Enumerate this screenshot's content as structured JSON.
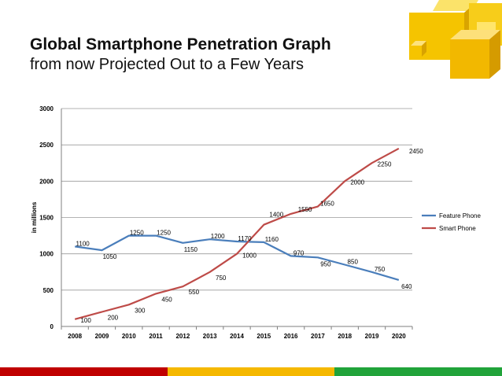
{
  "header": {
    "title": "Global Smartphone Penetration Graph",
    "subtitle": "from now Projected Out to a Few Years"
  },
  "chart_data": {
    "type": "line",
    "title": "",
    "xlabel": "",
    "ylabel": "in millions",
    "x": [
      2008,
      2009,
      2010,
      2011,
      2012,
      2013,
      2014,
      2015,
      2016,
      2017,
      2018,
      2019,
      2020
    ],
    "ylim": [
      0,
      3000
    ],
    "yticks": [
      0,
      500,
      1000,
      1500,
      2000,
      2500,
      3000
    ],
    "grid": true,
    "legend_position": "right",
    "series": [
      {
        "name": "Feature Phone",
        "color": "#4a7ebb",
        "values": [
          1100,
          1050,
          1250,
          1250,
          1150,
          1200,
          1170,
          1160,
          970,
          950,
          850,
          750,
          640
        ],
        "data_labels": [
          "1100",
          "1050",
          "1250",
          "1250",
          "1150",
          "1200",
          "1170",
          "1160",
          "970",
          "950",
          "850",
          "750",
          "640"
        ]
      },
      {
        "name": "Smart Phone",
        "color": "#be4b48",
        "values": [
          100,
          200,
          300,
          450,
          550,
          750,
          1000,
          1400,
          1550,
          1650,
          2000,
          2250,
          2450
        ],
        "data_labels": [
          "100",
          "200",
          "300",
          "450",
          "550",
          "750",
          "1000",
          "1400",
          "1550",
          "1650",
          "2000",
          "2250",
          "2450"
        ]
      }
    ]
  },
  "theme": {
    "footer_colors": [
      "#c00000",
      "#f5b800",
      "#21a33a"
    ],
    "cube_color": "#f5c400"
  }
}
